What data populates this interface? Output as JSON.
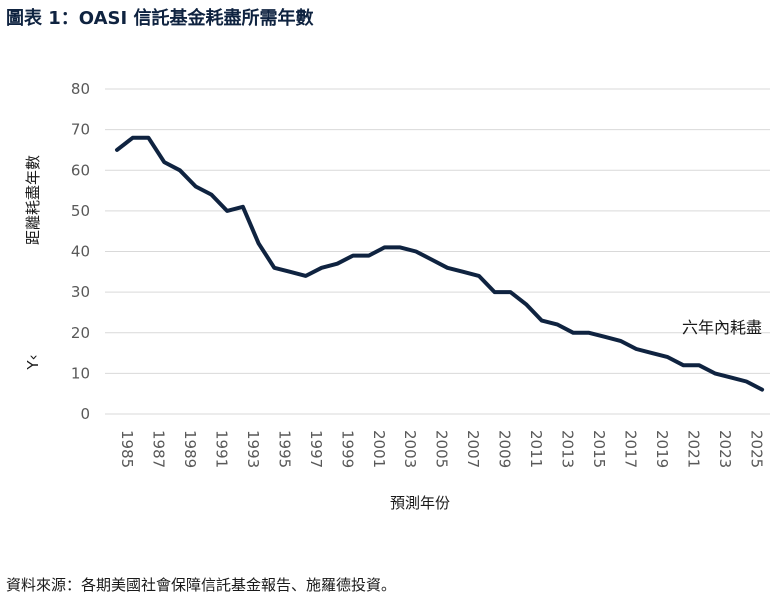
{
  "title": "圖表 1：OASI 信託基金耗盡所需年數",
  "source": "資料來源：各期美國社會保障信託基金報告、施羅德投資。",
  "colors": {
    "line": "#0f2340",
    "grid": "#d9d9d9",
    "title": "#0f2340"
  },
  "chart_data": {
    "type": "line",
    "xlabel": "預測年份",
    "ylabel": "距離耗盡年數",
    "ylabel_fragment": "Y‹",
    "annotation": "六年內耗盡",
    "ylim": [
      0,
      80
    ],
    "xlim": [
      1985,
      2026.5
    ],
    "yticks": [
      0,
      10,
      20,
      30,
      40,
      50,
      60,
      70,
      80
    ],
    "xticks": [
      "1985",
      "1987",
      "1989",
      "1991",
      "1993",
      "1995",
      "1997",
      "1999",
      "2001",
      "2003",
      "2005",
      "2007",
      "2009",
      "2011",
      "2013",
      "2015",
      "2017",
      "2019",
      "2021",
      "2023",
      "2025"
    ],
    "grid": true,
    "series": [
      {
        "x": [
          1985,
          1986,
          1987,
          1988,
          1989,
          1990,
          1991,
          1992,
          1993,
          1994,
          1995,
          1996,
          1997,
          1998,
          1999,
          2000,
          2001,
          2002,
          2003,
          2004,
          2005,
          2006,
          2007,
          2008,
          2009,
          2010,
          2011,
          2012,
          2013,
          2014,
          2015,
          2016,
          2017,
          2018,
          2019,
          2020,
          2021,
          2022,
          2023,
          2024,
          2025,
          2026
        ],
        "values": [
          65,
          68,
          68,
          62,
          60,
          56,
          54,
          50,
          51,
          42,
          36,
          35,
          34,
          36,
          37,
          39,
          39,
          41,
          41,
          40,
          38,
          36,
          35,
          34,
          30,
          30,
          27,
          23,
          22,
          20,
          20,
          19,
          18,
          16,
          15,
          14,
          12,
          12,
          10,
          9,
          8,
          6
        ]
      }
    ]
  }
}
